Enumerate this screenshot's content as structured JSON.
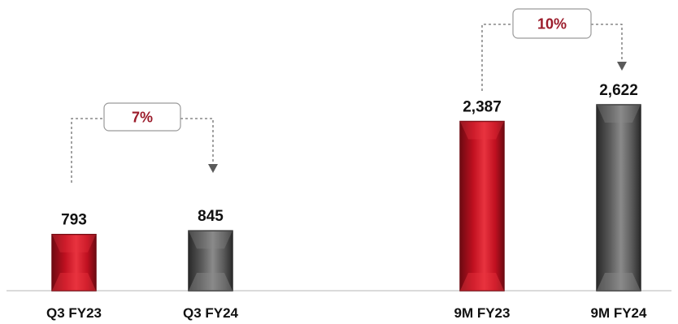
{
  "chart_data": {
    "type": "bar",
    "categories": [
      "Q3 FY23",
      "Q3 FY24",
      "9M FY23",
      "9M FY24"
    ],
    "values": [
      793,
      845,
      2387,
      2622
    ],
    "value_labels": [
      "793",
      "845",
      "2,387",
      "2,622"
    ],
    "bar_colors": [
      "red",
      "dark-grey",
      "red",
      "dark-grey"
    ],
    "growth_callouts": [
      {
        "label": "7%",
        "from": "Q3 FY23",
        "to": "Q3 FY24"
      },
      {
        "label": "10%",
        "from": "9M FY23",
        "to": "9M FY24"
      }
    ],
    "title": "",
    "xlabel": "",
    "ylabel": "",
    "ylim": [
      0,
      2622
    ],
    "grid": false,
    "legend": "none"
  },
  "colors": {
    "red_light": "#e8333f",
    "red_mid": "#c01020",
    "red_dark": "#6e0a12",
    "grey_light": "#8a8a8a",
    "grey_mid": "#5a5a5a",
    "grey_dark": "#2a2a2a",
    "growth_text": "#9b1b2a",
    "callout_line": "#6f6f6f",
    "baseline": "#cfcfcf"
  }
}
